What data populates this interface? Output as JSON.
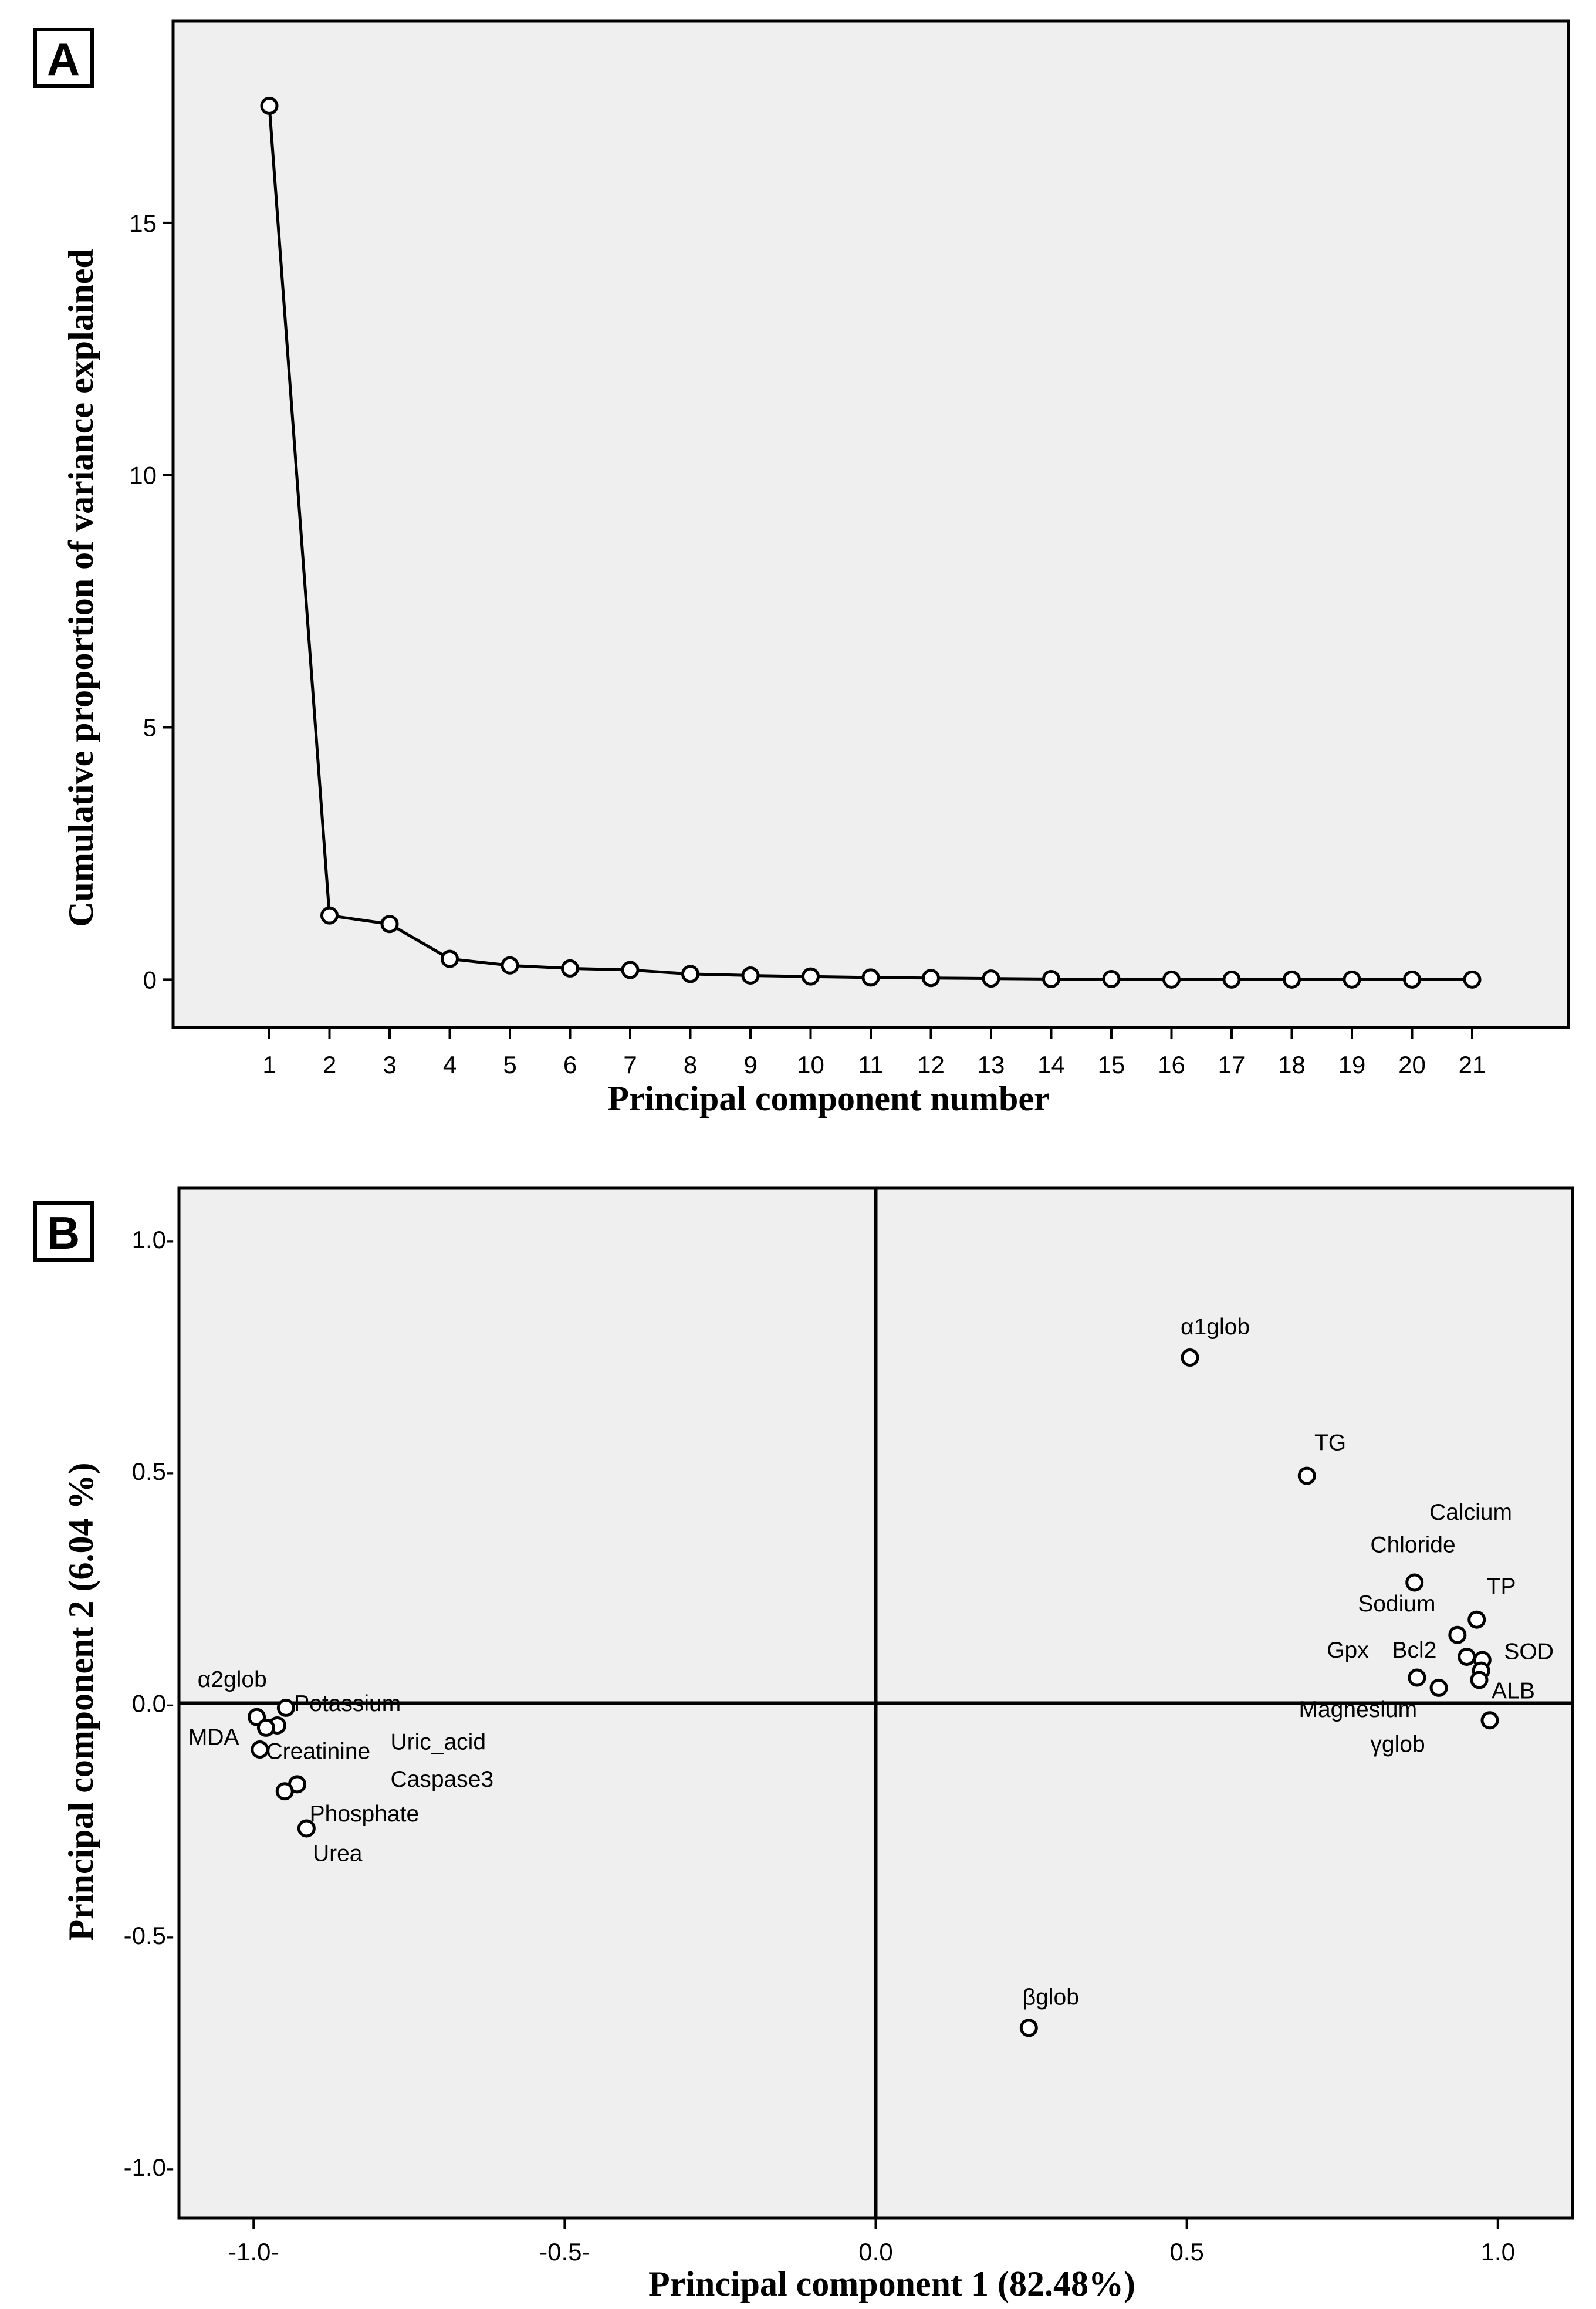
{
  "colors": {
    "plot_background": "#efefef",
    "axis": "#000000",
    "marker_fill": "#ffffff",
    "panel_label_background": "#ffffff"
  },
  "chart_data": [
    {
      "panel_label": "A",
      "type": "line",
      "title": "",
      "xlabel": "Principal component number",
      "ylabel": "Cumulative proportion of  variance  explained",
      "x": [
        1,
        2,
        3,
        4,
        5,
        6,
        7,
        8,
        9,
        10,
        11,
        12,
        13,
        14,
        15,
        16,
        17,
        18,
        19,
        20,
        21
      ],
      "values": [
        17.32,
        1.27,
        1.1,
        0.41,
        0.28,
        0.22,
        0.19,
        0.11,
        0.08,
        0.06,
        0.04,
        0.03,
        0.02,
        0.01,
        0.01,
        0.0,
        0.0,
        0.0,
        0.0,
        0.0,
        0.0
      ],
      "xlim": [
        -0.6,
        22.6
      ],
      "ylim": [
        -0.95,
        19.0
      ],
      "xticks": [
        1,
        2,
        3,
        4,
        5,
        6,
        7,
        8,
        9,
        10,
        11,
        12,
        13,
        14,
        15,
        16,
        17,
        18,
        19,
        20,
        21
      ],
      "xtick_labels": [
        "1",
        "2",
        "3",
        "4",
        "5",
        "6",
        "7",
        "8",
        "9",
        "10",
        "11",
        "12",
        "13",
        "14",
        "15",
        "16",
        "17",
        "18",
        "19",
        "20",
        "21"
      ],
      "yticks": [
        0,
        5,
        10,
        15
      ],
      "ytick_labels": [
        "0",
        "5",
        "10",
        "15"
      ],
      "grid": false,
      "markers": "open-circle"
    },
    {
      "panel_label": "B",
      "type": "scatter",
      "title": "",
      "xlabel": "Principal component 1 (82.48%)",
      "ylabel": "Principal component  2 (6.04 %)",
      "xlim": [
        -1.12,
        1.12
      ],
      "ylim": [
        -1.11,
        1.11
      ],
      "xticks": [
        -1.0,
        -0.5,
        0.0,
        0.5,
        1.0
      ],
      "xtick_labels": [
        "-1.0-",
        "-0.5-",
        "0.0",
        "0.5",
        "1.0"
      ],
      "yticks": [
        1.0,
        0.5,
        0.0,
        -0.5,
        -1.0
      ],
      "ytick_labels": [
        "1.0-",
        "0.5-",
        "0.0-",
        "-0.5-",
        "-1.0-"
      ],
      "reference_lines": {
        "x": 0,
        "y": 0
      },
      "grid": false,
      "markers": "open-circle",
      "points": [
        {
          "x": 0.505,
          "y": 0.745
        },
        {
          "x": 0.693,
          "y": 0.49
        },
        {
          "x": 0.866,
          "y": 0.26
        },
        {
          "x": 0.966,
          "y": 0.18
        },
        {
          "x": 0.935,
          "y": 0.147
        },
        {
          "x": 0.95,
          "y": 0.1
        },
        {
          "x": 0.975,
          "y": 0.093
        },
        {
          "x": 0.973,
          "y": 0.07
        },
        {
          "x": 0.87,
          "y": 0.055
        },
        {
          "x": 0.97,
          "y": 0.05
        },
        {
          "x": 0.905,
          "y": 0.033
        },
        {
          "x": 0.987,
          "y": -0.037
        },
        {
          "x": 0.246,
          "y": -0.7
        },
        {
          "x": -0.995,
          "y": -0.03
        },
        {
          "x": -0.948,
          "y": -0.01
        },
        {
          "x": -0.962,
          "y": -0.048
        },
        {
          "x": -0.98,
          "y": -0.053
        },
        {
          "x": -0.99,
          "y": -0.1
        },
        {
          "x": -0.93,
          "y": -0.175
        },
        {
          "x": -0.95,
          "y": -0.19
        },
        {
          "x": -0.915,
          "y": -0.27
        }
      ],
      "annotations": [
        {
          "text": "α1glob",
          "x": 0.49,
          "y": 0.795
        },
        {
          "text": "TG",
          "x": 0.705,
          "y": 0.545
        },
        {
          "text": "Calcium",
          "x": 0.89,
          "y": 0.395
        },
        {
          "text": "Chloride",
          "x": 0.795,
          "y": 0.325
        },
        {
          "text": "TP",
          "x": 0.982,
          "y": 0.235
        },
        {
          "text": "Sodium",
          "x": 0.775,
          "y": 0.198
        },
        {
          "text": "SOD",
          "x": 1.01,
          "y": 0.095
        },
        {
          "text": "Gpx",
          "x": 0.725,
          "y": 0.098
        },
        {
          "text": "Bcl2",
          "x": 0.83,
          "y": 0.098
        },
        {
          "text": "ALB",
          "x": 0.99,
          "y": 0.01
        },
        {
          "text": "Magnesium",
          "x": 0.68,
          "y": -0.03
        },
        {
          "text": "γglob",
          "x": 0.795,
          "y": -0.105
        },
        {
          "text": "βglob",
          "x": 0.236,
          "y": -0.65
        },
        {
          "text": "α2glob",
          "x": -1.09,
          "y": 0.035
        },
        {
          "text": "Potassium",
          "x": -0.935,
          "y": -0.017
        },
        {
          "text": "MDA",
          "x": -1.105,
          "y": -0.09
        },
        {
          "text": "Creatinine",
          "x": -0.98,
          "y": -0.12
        },
        {
          "text": "Uric_acid",
          "x": -0.78,
          "y": -0.1
        },
        {
          "text": "Caspase3",
          "x": -0.78,
          "y": -0.18
        },
        {
          "text": "Phosphate",
          "x": -0.91,
          "y": -0.255
        },
        {
          "text": "Urea",
          "x": -0.905,
          "y": -0.34
        }
      ]
    }
  ]
}
